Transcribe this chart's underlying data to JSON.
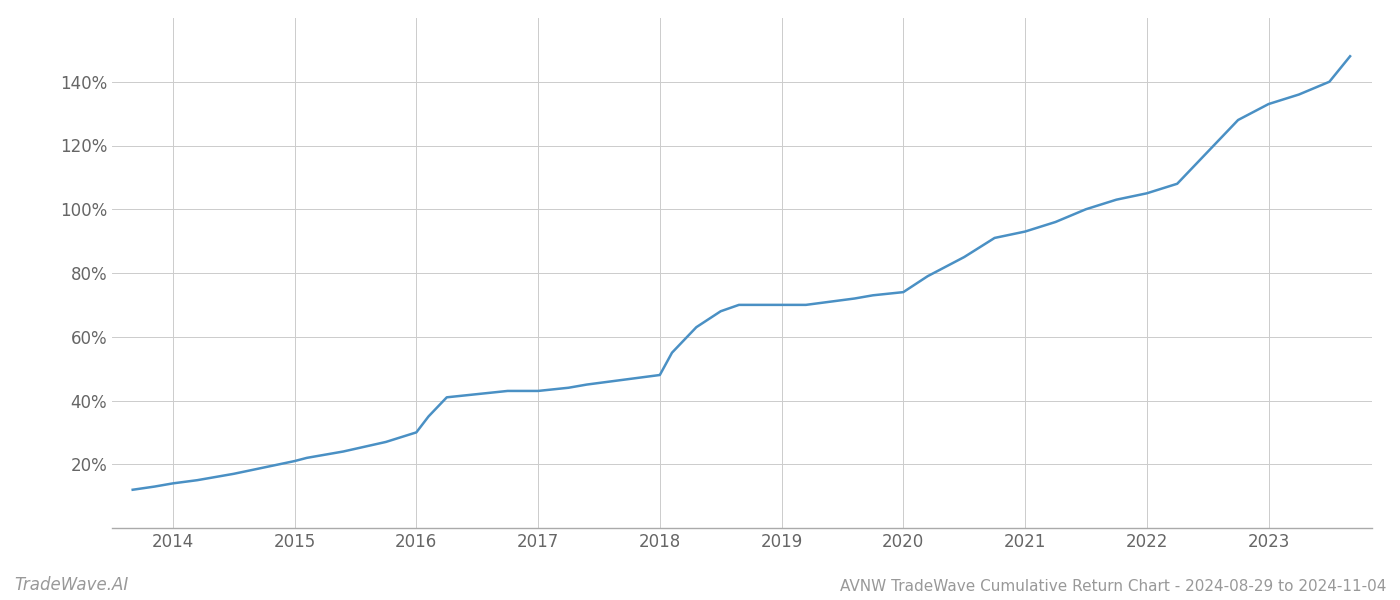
{
  "title": "AVNW TradeWave Cumulative Return Chart - 2024-08-29 to 2024-11-04",
  "watermark": "TradeWave.AI",
  "line_color": "#4a90c4",
  "background_color": "#ffffff",
  "grid_color": "#cccccc",
  "x_values": [
    2013.67,
    2013.85,
    2014.0,
    2014.2,
    2014.5,
    2014.75,
    2015.0,
    2015.1,
    2015.4,
    2015.75,
    2016.0,
    2016.1,
    2016.25,
    2016.5,
    2016.75,
    2017.0,
    2017.25,
    2017.4,
    2017.6,
    2017.8,
    2018.0,
    2018.1,
    2018.3,
    2018.5,
    2018.65,
    2018.75,
    2019.0,
    2019.2,
    2019.4,
    2019.6,
    2019.75,
    2020.0,
    2020.2,
    2020.5,
    2020.75,
    2021.0,
    2021.25,
    2021.5,
    2021.75,
    2022.0,
    2022.25,
    2022.5,
    2022.75,
    2023.0,
    2023.25,
    2023.5,
    2023.67
  ],
  "y_values": [
    12,
    13,
    14,
    15,
    17,
    19,
    21,
    22,
    24,
    27,
    30,
    35,
    41,
    42,
    43,
    43,
    44,
    45,
    46,
    47,
    48,
    55,
    63,
    68,
    70,
    70,
    70,
    70,
    71,
    72,
    73,
    74,
    79,
    85,
    91,
    93,
    96,
    100,
    103,
    105,
    108,
    118,
    128,
    133,
    136,
    140,
    148
  ],
  "xlim": [
    2013.5,
    2023.85
  ],
  "ylim": [
    0,
    160
  ],
  "yticks": [
    20,
    40,
    60,
    80,
    100,
    120,
    140
  ],
  "xticks": [
    2014,
    2015,
    2016,
    2017,
    2018,
    2019,
    2020,
    2021,
    2022,
    2023
  ],
  "line_width": 1.8,
  "title_fontsize": 11,
  "tick_fontsize": 12,
  "watermark_fontsize": 12
}
